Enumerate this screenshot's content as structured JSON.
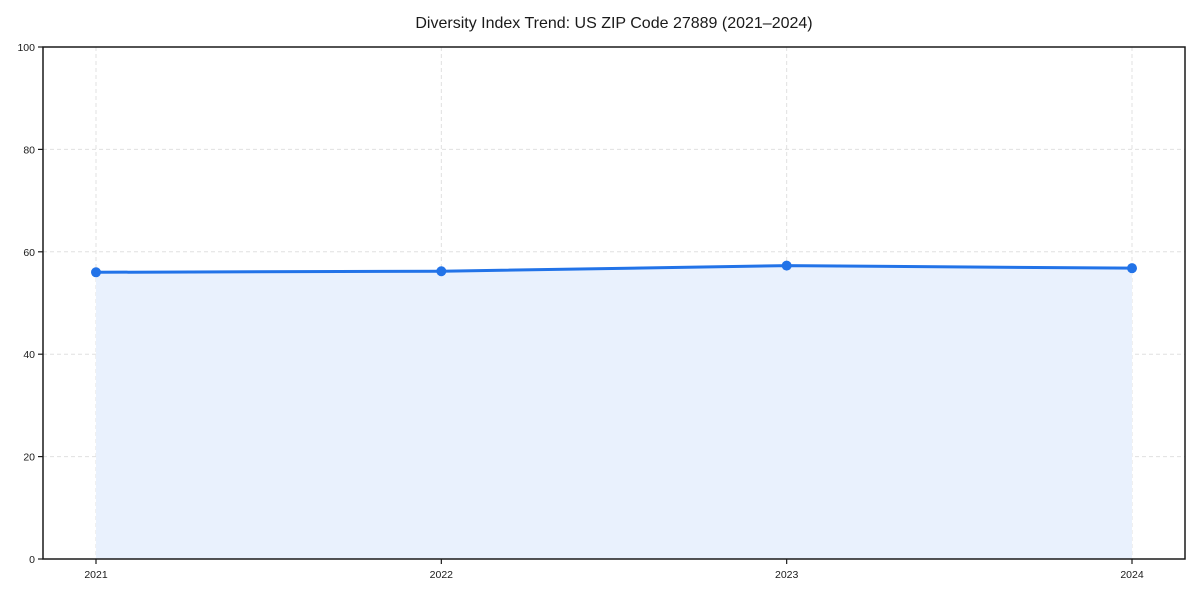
{
  "page": {
    "background": "#ffffff"
  },
  "chart_data": {
    "type": "area",
    "title": "Diversity Index Trend: US ZIP Code 27889 (2021–2024)",
    "xlabel": "",
    "ylabel": "",
    "x": [
      2021,
      2022,
      2023,
      2024
    ],
    "categories": [
      "2021",
      "2022",
      "2023",
      "2024"
    ],
    "series": [
      {
        "name": "Diversity Index",
        "values": [
          56.0,
          56.2,
          57.3,
          56.8
        ]
      }
    ],
    "ylim": [
      0,
      100
    ],
    "yticks": [
      0,
      20,
      40,
      60,
      80,
      100
    ],
    "grid": true,
    "grid_style": "dashed",
    "legend_position": "none",
    "colors": {
      "line": "#2273e8",
      "marker": "#2273e8",
      "fill": "#e9f1fd",
      "grid": "#e0e0e0",
      "spine": "#1a1a1a",
      "text": "#1a1a1a"
    }
  }
}
